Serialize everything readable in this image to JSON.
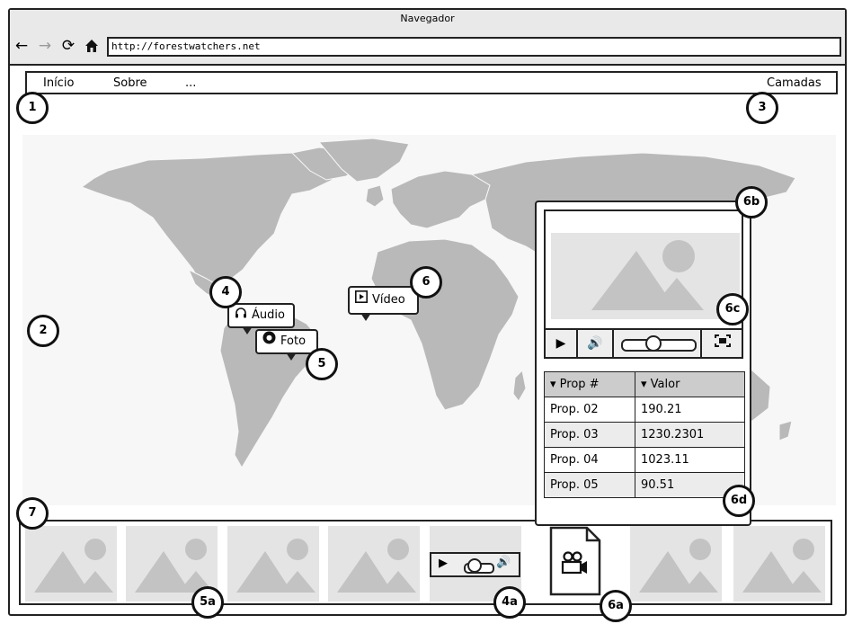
{
  "window": {
    "title": "Navegador"
  },
  "toolbar": {
    "back_icon": "arrow-left-icon",
    "forward_icon": "arrow-right-icon",
    "reload_icon": "reload-icon",
    "home_icon": "home-icon",
    "url": "http://forestwatchers.net"
  },
  "menu": {
    "items": [
      "Início",
      "Sobre",
      "..."
    ],
    "right_item": "Camadas"
  },
  "markers": {
    "m1": "1",
    "m2": "2",
    "m3": "3",
    "m4": "4",
    "m5": "5",
    "m6": "6",
    "m6a": "6a",
    "m6b": "6b",
    "m6c": "6c",
    "m6d": "6d",
    "m7": "7",
    "m5a": "5a",
    "m4a": "4a"
  },
  "bubbles": {
    "audio": "Áudio",
    "photo": "Foto",
    "video": "Vídeo"
  },
  "popup": {
    "headers": [
      "Prop #",
      "Valor"
    ],
    "rows": [
      {
        "prop": "Prop. 02",
        "value": "190.21"
      },
      {
        "prop": "Prop. 03",
        "value": "1230.2301"
      },
      {
        "prop": "Prop. 04",
        "value": "1023.11"
      },
      {
        "prop": "Prop. 05",
        "value": "90.51"
      }
    ],
    "slider_position": 0.45
  },
  "colors": {
    "landmass": "#b9b9b9",
    "placeholder": "#e4e4e4",
    "placeholder_shape": "#c3c3c3",
    "header": "#cccccc"
  }
}
